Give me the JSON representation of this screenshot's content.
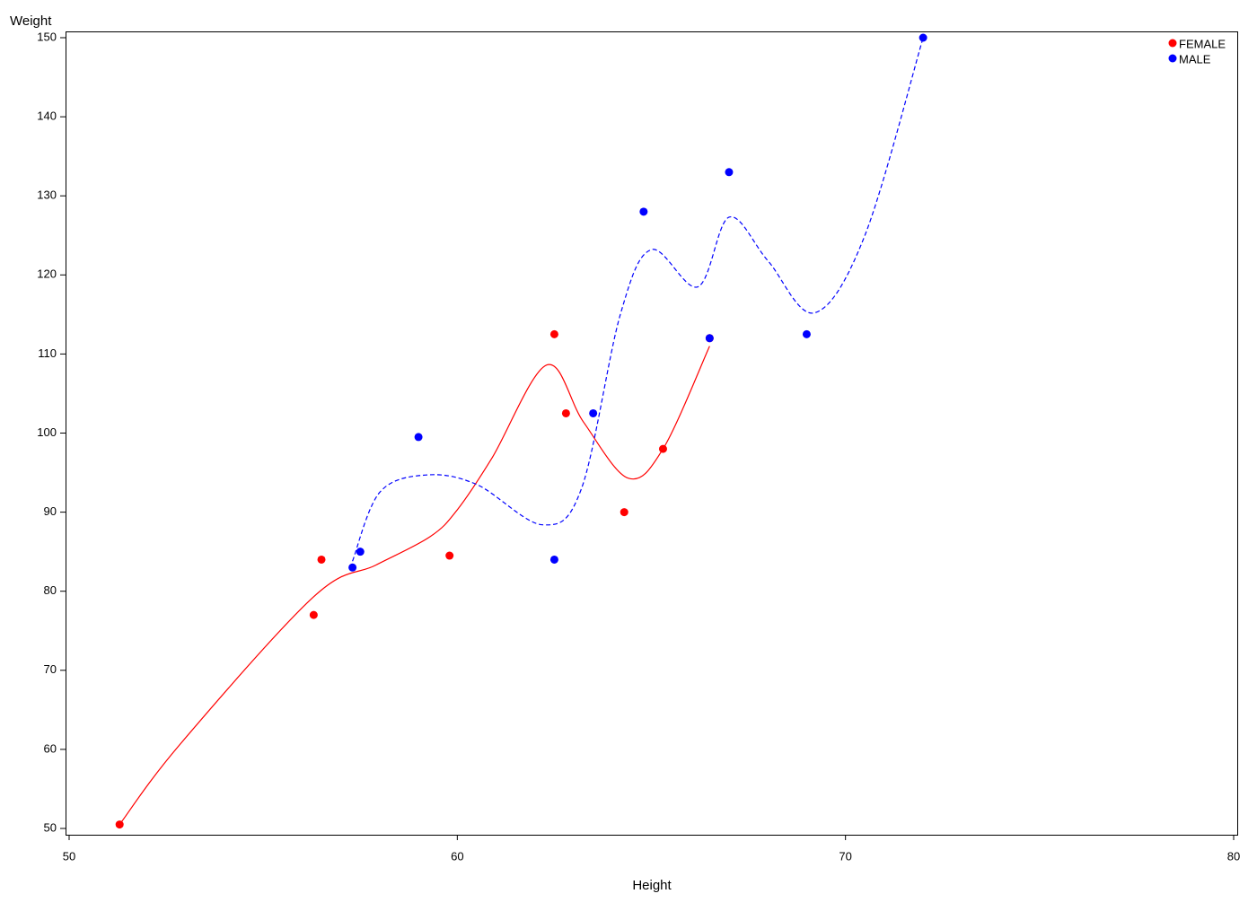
{
  "chart_data": {
    "type": "scatter",
    "x_label": "Height",
    "y_label": "Weight",
    "xlim": [
      50,
      80
    ],
    "xticks": [
      50,
      60,
      70,
      80
    ],
    "ylim": [
      50,
      150
    ],
    "yticks": [
      50,
      60,
      70,
      80,
      90,
      100,
      110,
      120,
      130,
      140,
      150
    ],
    "legend": "top-right",
    "series": [
      {
        "name": "FEMALE",
        "color": "#ff0000",
        "line_style": "solid",
        "x": [
          56.5,
          65.3,
          62.8,
          59.8,
          62.5,
          51.3,
          64.3,
          56.3,
          66.5
        ],
        "values": [
          84,
          98,
          102.5,
          84.5,
          112.5,
          50.5,
          90,
          77,
          112
        ],
        "fit_x": [
          51.3,
          52.85,
          56.3,
          57.9,
          59.3,
          60,
          60.9,
          62.3,
          63.25,
          64.4,
          65.3,
          66.5
        ],
        "fit_values": [
          50.5,
          60.6,
          79.3,
          83.3,
          86.9,
          90.3,
          96.9,
          108.6,
          101.4,
          94.3,
          98,
          111
        ]
      },
      {
        "name": "MALE",
        "color": "#0000ff",
        "line_style": "dashed",
        "x": [
          69,
          63.5,
          57.3,
          62.5,
          59,
          72,
          64.8,
          67,
          57.5,
          66.5
        ],
        "values": [
          112.5,
          102.5,
          83,
          84,
          99.5,
          150,
          128,
          133,
          85,
          112
        ],
        "fit_x": [
          57.3,
          58,
          59.2,
          60.5,
          62.2,
          63.2,
          64.2,
          65,
          66.2,
          67,
          68,
          69.2,
          70.5,
          72
        ],
        "fit_values": [
          83.8,
          92.5,
          94.7,
          93.5,
          88.4,
          93,
          115,
          123.2,
          118.5,
          127.3,
          121.8,
          115.2,
          125,
          150
        ]
      }
    ]
  }
}
